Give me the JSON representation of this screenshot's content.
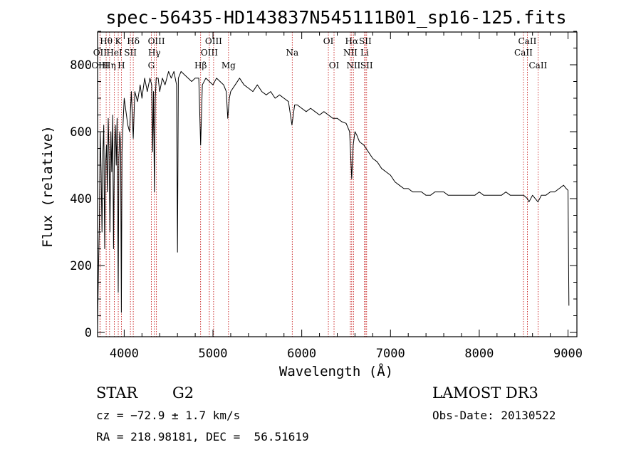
{
  "chart_data": {
    "type": "line",
    "title": "spec-56435-HD143837N545111B01_sp16-125.fits",
    "xlabel": "Wavelength (Å)",
    "ylabel": "Flux (relative)",
    "xlim": [
      3700,
      9100
    ],
    "ylim": [
      0,
      900
    ],
    "xticks": [
      4000,
      5000,
      6000,
      7000,
      8000,
      9000
    ],
    "yticks": [
      0,
      200,
      400,
      600,
      800
    ],
    "series": [
      {
        "name": "spectrum",
        "x": [
          3700,
          3710,
          3720,
          3730,
          3740,
          3750,
          3760,
          3770,
          3780,
          3790,
          3800,
          3810,
          3820,
          3830,
          3840,
          3850,
          3860,
          3870,
          3880,
          3890,
          3900,
          3910,
          3920,
          3933,
          3940,
          3950,
          3960,
          3968,
          3975,
          3990,
          4000,
          4020,
          4040,
          4060,
          4080,
          4102,
          4120,
          4150,
          4180,
          4200,
          4230,
          4260,
          4290,
          4310,
          4320,
          4330,
          4340,
          4350,
          4360,
          4383,
          4400,
          4430,
          4460,
          4500,
          4530,
          4560,
          4590,
          4600,
          4610,
          4640,
          4680,
          4720,
          4760,
          4800,
          4840,
          4861,
          4880,
          4920,
          4960,
          5000,
          5040,
          5080,
          5120,
          5150,
          5167,
          5184,
          5200,
          5250,
          5300,
          5350,
          5400,
          5450,
          5500,
          5550,
          5600,
          5650,
          5700,
          5750,
          5800,
          5850,
          5890,
          5920,
          5950,
          6000,
          6050,
          6100,
          6150,
          6200,
          6250,
          6300,
          6350,
          6400,
          6450,
          6500,
          6540,
          6563,
          6580,
          6600,
          6620,
          6650,
          6700,
          6750,
          6800,
          6850,
          6900,
          6950,
          7000,
          7050,
          7100,
          7150,
          7200,
          7250,
          7300,
          7350,
          7400,
          7450,
          7500,
          7550,
          7600,
          7650,
          7700,
          7750,
          7800,
          7850,
          7900,
          7950,
          8000,
          8050,
          8100,
          8150,
          8200,
          8250,
          8300,
          8350,
          8400,
          8450,
          8500,
          8542,
          8560,
          8600,
          8662,
          8700,
          8750,
          8800,
          8850,
          8900,
          8950,
          8980,
          9000,
          9010
        ],
        "y": [
          20,
          180,
          320,
          600,
          480,
          300,
          540,
          620,
          250,
          500,
          560,
          420,
          640,
          520,
          300,
          600,
          480,
          650,
          250,
          560,
          620,
          500,
          640,
          120,
          520,
          600,
          560,
          60,
          540,
          640,
          700,
          660,
          620,
          600,
          720,
          580,
          720,
          690,
          740,
          700,
          760,
          720,
          760,
          740,
          540,
          720,
          420,
          700,
          760,
          760,
          720,
          760,
          740,
          780,
          760,
          780,
          740,
          240,
          760,
          780,
          770,
          760,
          750,
          760,
          760,
          560,
          740,
          760,
          750,
          740,
          760,
          750,
          740,
          720,
          640,
          700,
          720,
          740,
          760,
          740,
          730,
          720,
          740,
          720,
          710,
          720,
          700,
          710,
          700,
          690,
          620,
          680,
          680,
          670,
          660,
          670,
          660,
          650,
          660,
          650,
          640,
          640,
          630,
          625,
          600,
          460,
          560,
          600,
          590,
          570,
          560,
          540,
          520,
          510,
          490,
          480,
          470,
          450,
          440,
          430,
          430,
          420,
          420,
          420,
          410,
          410,
          420,
          420,
          420,
          410,
          410,
          410,
          410,
          410,
          410,
          410,
          420,
          410,
          410,
          410,
          410,
          410,
          420,
          410,
          410,
          410,
          410,
          400,
          390,
          410,
          390,
          410,
          410,
          420,
          420,
          430,
          440,
          430,
          425,
          80
        ]
      }
    ],
    "lines": [
      {
        "name": "Hθ",
        "wave": 3797,
        "row": 1
      },
      {
        "name": "OII",
        "wave": 3727,
        "row": 2
      },
      {
        "name": "OIII",
        "wave": 3727,
        "row": 3
      },
      {
        "name": "Hη",
        "wave": 3835,
        "row": 3
      },
      {
        "name": "HeI",
        "wave": 3889,
        "row": 2
      },
      {
        "name": "K",
        "wave": 3933,
        "row": 1
      },
      {
        "name": "SII",
        "wave": 4070,
        "row": 2
      },
      {
        "name": "H",
        "wave": 3968,
        "row": 3
      },
      {
        "name": "Hδ",
        "wave": 4102,
        "row": 1
      },
      {
        "name": "OIII",
        "wave": 4363,
        "row": 1
      },
      {
        "name": "Hγ",
        "wave": 4340,
        "row": 2
      },
      {
        "name": "G",
        "wave": 4305,
        "row": 3
      },
      {
        "name": "OIII",
        "wave": 5007,
        "row": 1
      },
      {
        "name": "OIII",
        "wave": 4959,
        "row": 2
      },
      {
        "name": "Hβ",
        "wave": 4861,
        "row": 3
      },
      {
        "name": "Mg",
        "wave": 5175,
        "row": 3
      },
      {
        "name": "Na",
        "wave": 5893,
        "row": 2
      },
      {
        "name": "OI",
        "wave": 6300,
        "row": 1
      },
      {
        "name": "OI",
        "wave": 6364,
        "row": 3
      },
      {
        "name": "Hα",
        "wave": 6563,
        "row": 1
      },
      {
        "name": "SII",
        "wave": 6716,
        "row": 1
      },
      {
        "name": "NII",
        "wave": 6548,
        "row": 2
      },
      {
        "name": "Li",
        "wave": 6708,
        "row": 2
      },
      {
        "name": "NII",
        "wave": 6583,
        "row": 3
      },
      {
        "name": "SII",
        "wave": 6731,
        "row": 3
      },
      {
        "name": "CaII",
        "wave": 8542,
        "row": 1
      },
      {
        "name": "CaII",
        "wave": 8498,
        "row": 2
      },
      {
        "name": "CaII",
        "wave": 8662,
        "row": 3
      }
    ]
  },
  "info": {
    "object_class": "STAR",
    "subclass": "G2",
    "survey": "LAMOST DR3",
    "cz": "cz = −72.9 ± 1.7 km/s",
    "obs_date": "Obs-Date: 20130522",
    "radec": "RA = 218.98181, DEC =  56.51619"
  },
  "colors": {
    "spectrum": "#000000",
    "line_markers": "#c00000",
    "axes": "#000000"
  }
}
